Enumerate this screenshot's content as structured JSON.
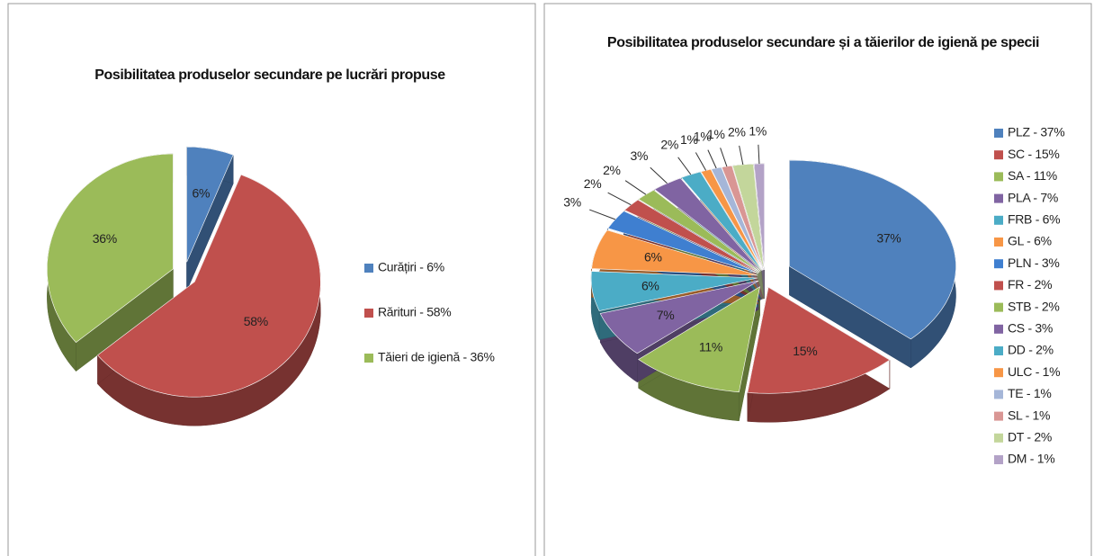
{
  "chart_data": [
    {
      "type": "pie",
      "title": "Posibilitatea produselor secundare pe lucrări propuse",
      "categories": [
        "Curățiri - 6%",
        "Rărituri - 58%",
        "Tăieri de igienă - 36%"
      ],
      "values": [
        6,
        58,
        36
      ],
      "value_labels": [
        "6%",
        "58%",
        "36%"
      ],
      "colors": [
        "#4f81bd",
        "#c0504d",
        "#9bbb59"
      ]
    },
    {
      "type": "pie",
      "title": "Posibilitatea produselor secundare și a tăierilor de igienă pe specii",
      "categories": [
        "PLZ - 37%",
        "SC - 15%",
        "SA - 11%",
        "PLA - 7%",
        "FRB - 6%",
        "GL - 6%",
        "PLN - 3%",
        "FR - 2%",
        "STB - 2%",
        "CS - 3%",
        "DD - 2%",
        "ULC - 1%",
        "TE - 1%",
        "SL - 1%",
        "DT - 2%",
        "DM - 1%"
      ],
      "values": [
        37,
        15,
        11,
        7,
        6,
        6,
        3,
        2,
        2,
        3,
        2,
        1,
        1,
        1,
        2,
        1
      ],
      "value_labels": [
        "37%",
        "15%",
        "11%",
        "7%",
        "6%",
        "6%",
        "3%",
        "2%",
        "2%",
        "3%",
        "2%",
        "1%",
        "1%",
        "1%",
        "2%",
        "1%"
      ],
      "colors": [
        "#4f81bd",
        "#c0504d",
        "#9bbb59",
        "#8064a2",
        "#4bacc6",
        "#f79646",
        "#3f7fd0",
        "#c0504d",
        "#9bbb59",
        "#8064a2",
        "#4bacc6",
        "#f79646",
        "#a5b6d8",
        "#d99694",
        "#c3d69b",
        "#b3a2c7"
      ]
    }
  ]
}
